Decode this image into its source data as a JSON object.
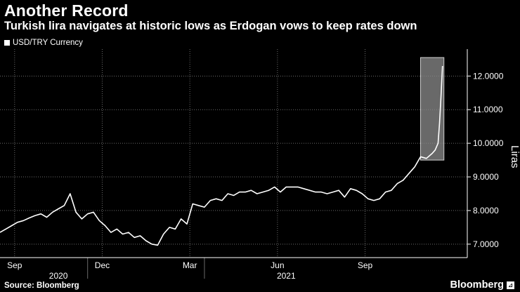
{
  "header": {
    "title": "Another Record",
    "subtitle": "Turkish lira navigates at historic lows as Erdogan vows to keep rates down"
  },
  "footer": {
    "source": "Source: Bloomberg",
    "brand": "Bloomberg",
    "brand_icon": "bloomberg-logo-icon"
  },
  "colors": {
    "background": "#000000",
    "line": "#ffffff",
    "grid": "#6b6b6b",
    "highlight": "#8c8c8c"
  },
  "chart_data": {
    "type": "line",
    "title": "Another Record",
    "subtitle": "Turkish lira navigates at historic lows as Erdogan vows to keep rates down",
    "legend": [
      "USD/TRY Currency"
    ],
    "legend_position": "top-left",
    "xlabel": "",
    "ylabel": "Liras",
    "y_axis_side": "right",
    "ylim": [
      6.6,
      12.8
    ],
    "xlim": [
      0,
      16
    ],
    "grid": true,
    "y_ticks": [
      7.0,
      8.0,
      9.0,
      10.0,
      11.0,
      12.0
    ],
    "y_tick_labels": [
      "7.0000",
      "8.0000",
      "9.0000",
      "10.0000",
      "11.0000",
      "12.0000"
    ],
    "x_ticks": [
      {
        "x": 0.5,
        "label": "Sep"
      },
      {
        "x": 3.5,
        "label": "Dec"
      },
      {
        "x": 6.5,
        "label": "Mar"
      },
      {
        "x": 9.5,
        "label": "Jun"
      },
      {
        "x": 12.5,
        "label": "Sep"
      }
    ],
    "year_labels": [
      {
        "x": 2.0,
        "label": "2020"
      },
      {
        "x": 9.8,
        "label": "2021"
      }
    ],
    "highlight_region": {
      "x_start": 14.4,
      "x_end": 15.2,
      "y_start": 9.5,
      "y_end": 12.55
    },
    "series": [
      {
        "name": "USD/TRY Currency",
        "x": [
          0.0,
          0.2,
          0.4,
          0.6,
          0.8,
          1.0,
          1.2,
          1.4,
          1.6,
          1.8,
          2.0,
          2.2,
          2.4,
          2.6,
          2.8,
          3.0,
          3.2,
          3.4,
          3.6,
          3.8,
          4.0,
          4.2,
          4.4,
          4.6,
          4.8,
          5.0,
          5.2,
          5.4,
          5.6,
          5.8,
          6.0,
          6.2,
          6.4,
          6.6,
          6.8,
          7.0,
          7.2,
          7.4,
          7.6,
          7.8,
          8.0,
          8.2,
          8.4,
          8.6,
          8.8,
          9.0,
          9.2,
          9.4,
          9.6,
          9.8,
          10.0,
          10.2,
          10.4,
          10.6,
          10.8,
          11.0,
          11.2,
          11.4,
          11.6,
          11.8,
          12.0,
          12.2,
          12.4,
          12.6,
          12.8,
          13.0,
          13.2,
          13.4,
          13.6,
          13.8,
          14.0,
          14.2,
          14.4,
          14.6,
          14.8,
          14.9,
          15.0,
          15.05,
          15.1
        ],
        "values": [
          7.35,
          7.45,
          7.55,
          7.65,
          7.7,
          7.78,
          7.85,
          7.9,
          7.8,
          7.95,
          8.05,
          8.15,
          8.5,
          7.95,
          7.75,
          7.9,
          7.95,
          7.7,
          7.55,
          7.35,
          7.45,
          7.3,
          7.35,
          7.2,
          7.25,
          7.1,
          7.0,
          6.97,
          7.3,
          7.5,
          7.45,
          7.75,
          7.6,
          8.2,
          8.15,
          8.1,
          8.3,
          8.35,
          8.3,
          8.5,
          8.45,
          8.55,
          8.55,
          8.6,
          8.5,
          8.55,
          8.6,
          8.7,
          8.55,
          8.7,
          8.7,
          8.7,
          8.65,
          8.6,
          8.55,
          8.55,
          8.5,
          8.55,
          8.6,
          8.4,
          8.65,
          8.6,
          8.5,
          8.35,
          8.3,
          8.35,
          8.55,
          8.6,
          8.8,
          8.9,
          9.1,
          9.3,
          9.6,
          9.55,
          9.7,
          9.8,
          10.0,
          10.6,
          11.4
        ]
      }
    ],
    "final_spike": {
      "x": [
        15.1,
        15.15
      ],
      "values": [
        11.4,
        12.3
      ]
    }
  }
}
